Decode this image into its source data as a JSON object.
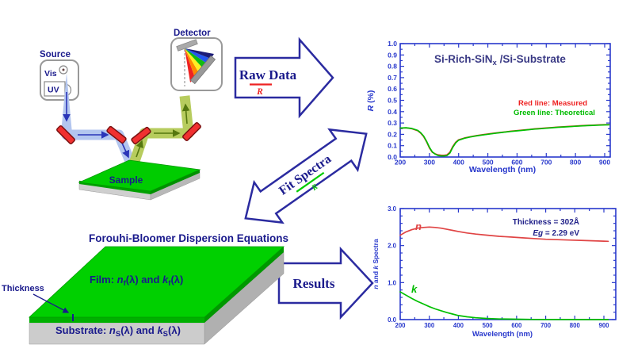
{
  "figure": {
    "instrument": {
      "source_label": "Source",
      "vis_label": "Vis",
      "uv_label": "UV",
      "detector_label": "Detector",
      "sample_label": "Sample"
    },
    "arrows": {
      "raw_data_label": "Raw Data",
      "raw_data_sub": "R",
      "raw_data_sub_color": "#ee2222",
      "fit_spectra_label": "Fit Spectra",
      "fit_spectra_sub": "R",
      "fit_spectra_sub_color": "#00bb00",
      "results_label": "Results"
    },
    "model": {
      "title": "Forouhi-Bloomer Dispersion Equations",
      "thickness_label": "Thickness",
      "film": {
        "pre": "Film: ",
        "n": "n",
        "sub1": "f",
        "mid": "(λ) and ",
        "k": "k",
        "sub2": "f",
        "end": "(λ)"
      },
      "substrate": {
        "pre": "Substrate: ",
        "n": "n",
        "sub1": "S",
        "mid": "(λ) and ",
        "k": "k",
        "sub2": "S",
        "end": "(λ)"
      }
    },
    "colors": {
      "navy_text": "#1a1a8c",
      "chart_frame_blue": "#2838cc",
      "mirror_red": "#ee2222",
      "film_green": "#00cc00",
      "substrate_gray": "#c8c8c8",
      "beam_blue": "#b3c6ef",
      "beam_green": "#b7cc5e"
    }
  },
  "chart_data": [
    {
      "id": "reflectance",
      "type": "line",
      "title_pre": "Si-Rich-SiN",
      "title_sub": "x",
      "title_post": " /Si-Substrate",
      "xlabel": "Wavelength (nm)",
      "ylabel_italic": "R",
      "ylabel_rest": " (%)",
      "xlim": [
        200,
        900
      ],
      "ylim": [
        0,
        1.0
      ],
      "grid": false,
      "xtick_labels": [
        "200",
        "300",
        "400",
        "500",
        "600",
        "700",
        "800",
        "900"
      ],
      "ytick_labels": [
        "0.0",
        "0.1",
        "0.2",
        "0.3",
        "0.4",
        "0.5",
        "0.6",
        "0.7",
        "0.8",
        "0.9",
        "1.0"
      ],
      "legend": [
        {
          "text": "Red line: Measured",
          "color": "#ee2222"
        },
        {
          "text": "Green line: Theoretical",
          "color": "#00bb00"
        }
      ],
      "x": [
        200,
        220,
        240,
        260,
        270,
        280,
        290,
        300,
        310,
        320,
        330,
        340,
        350,
        360,
        370,
        380,
        390,
        400,
        420,
        440,
        460,
        480,
        500,
        520,
        540,
        560,
        580,
        600,
        620,
        640,
        660,
        680,
        700,
        720,
        740,
        760,
        780,
        800,
        820,
        840,
        860,
        880,
        900,
        915
      ],
      "series": [
        {
          "name": "Measured",
          "color": "#ee2222",
          "values": [
            0.255,
            0.257,
            0.25,
            0.232,
            0.211,
            0.181,
            0.135,
            0.08,
            0.042,
            0.028,
            0.018,
            0.016,
            0.015,
            0.019,
            0.042,
            0.092,
            0.13,
            0.152,
            0.168,
            0.179,
            0.188,
            0.196,
            0.203,
            0.21,
            0.216,
            0.222,
            0.228,
            0.233,
            0.238,
            0.243,
            0.248,
            0.252,
            0.256,
            0.26,
            0.264,
            0.267,
            0.27,
            0.273,
            0.276,
            0.279,
            0.281,
            0.283,
            0.285,
            0.286
          ]
        },
        {
          "name": "Theoretical",
          "color": "#00c000",
          "values": [
            0.255,
            0.258,
            0.252,
            0.235,
            0.215,
            0.185,
            0.14,
            0.085,
            0.045,
            0.025,
            0.013,
            0.01,
            0.01,
            0.013,
            0.035,
            0.085,
            0.125,
            0.148,
            0.166,
            0.177,
            0.186,
            0.194,
            0.201,
            0.208,
            0.214,
            0.22,
            0.226,
            0.231,
            0.236,
            0.241,
            0.246,
            0.25,
            0.254,
            0.258,
            0.262,
            0.265,
            0.268,
            0.271,
            0.274,
            0.277,
            0.279,
            0.281,
            0.283,
            0.284
          ]
        }
      ]
    },
    {
      "id": "nk-spectra",
      "type": "line",
      "annotations": [
        "Thickness = 302Å"
      ],
      "annotation2_italic": "Eg",
      "annotation2_rest": " = 2.29 eV",
      "xlabel": "Wavelength (nm)",
      "ylabel_parts": {
        "n": "n",
        "mid": " and ",
        "k": "k",
        "rest": " Spectra"
      },
      "xlim": [
        200,
        900
      ],
      "ylim": [
        0,
        3.0
      ],
      "grid": false,
      "xtick_labels": [
        "200",
        "300",
        "400",
        "500",
        "600",
        "700",
        "800",
        "900"
      ],
      "ytick_labels": [
        "0.0",
        "1.0",
        "2.0",
        "3.0"
      ],
      "curve_labels": [
        {
          "text": "n",
          "color": "#e04444"
        },
        {
          "text": "k",
          "color": "#00bb00"
        }
      ],
      "x": [
        200,
        220,
        240,
        260,
        280,
        300,
        320,
        340,
        360,
        380,
        400,
        430,
        460,
        500,
        540,
        580,
        620,
        660,
        700,
        740,
        780,
        820,
        860,
        900,
        915
      ],
      "series": [
        {
          "name": "n",
          "color": "#e04444",
          "values": [
            2.28,
            2.37,
            2.43,
            2.47,
            2.49,
            2.5,
            2.49,
            2.47,
            2.44,
            2.41,
            2.38,
            2.34,
            2.31,
            2.28,
            2.25,
            2.23,
            2.21,
            2.19,
            2.17,
            2.16,
            2.15,
            2.14,
            2.13,
            2.12,
            2.115
          ]
        },
        {
          "name": "k",
          "color": "#00c000",
          "values": [
            0.75,
            0.66,
            0.57,
            0.49,
            0.42,
            0.35,
            0.29,
            0.24,
            0.19,
            0.15,
            0.11,
            0.075,
            0.05,
            0.03,
            0.018,
            0.012,
            0.008,
            0.005,
            0.003,
            0.002,
            0.002,
            0.001,
            0.001,
            0.001,
            0.001
          ]
        }
      ]
    }
  ]
}
